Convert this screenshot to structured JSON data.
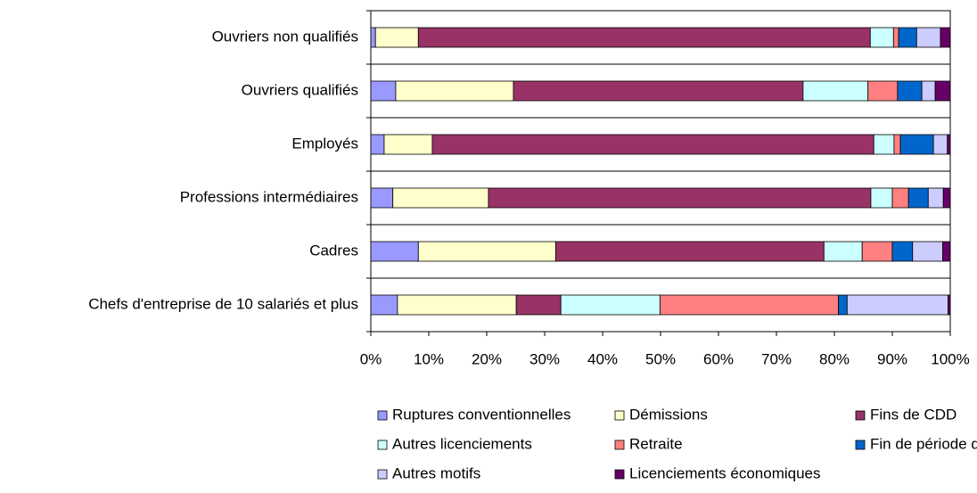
{
  "chart_data": {
    "type": "stacked_barh",
    "categories": [
      "Ouvriers non qualifiés",
      "Ouvriers qualifiés",
      "Employés",
      "Professions intermédiaires",
      "Cadres",
      "Chefs d'entreprise de 10 salariés et plus"
    ],
    "series": [
      {
        "name": "Ruptures conventionnelles",
        "color": "#9999ff",
        "values": [
          0.8,
          4.3,
          2.3,
          3.8,
          8.2,
          4.6
        ]
      },
      {
        "name": "Démissions",
        "color": "#ffffcc",
        "values": [
          7.4,
          20.3,
          8.3,
          16.5,
          23.7,
          20.5
        ]
      },
      {
        "name": "Fins de CDD",
        "color": "#993366",
        "values": [
          78,
          50,
          76.2,
          66,
          46.3,
          7.7
        ]
      },
      {
        "name": "Autres licenciements",
        "color": "#ccffff",
        "values": [
          4,
          11.2,
          3.5,
          3.7,
          6.6,
          17.1
        ]
      },
      {
        "name": "Retraite",
        "color": "#ff8080",
        "values": [
          0.9,
          5.1,
          1.1,
          2.8,
          5.2,
          30.8
        ]
      },
      {
        "name": "Fin de période d'essai",
        "color": "#0066cc",
        "values": [
          3.1,
          4.2,
          5.7,
          3.4,
          3.5,
          1.5
        ]
      },
      {
        "name": "Autres motifs",
        "color": "#ccccff",
        "values": [
          4.1,
          2.3,
          2.4,
          2.6,
          5.2,
          17.4
        ]
      },
      {
        "name": "Licenciements économiques",
        "color": "#660066",
        "values": [
          1.7,
          2.6,
          0.5,
          1.2,
          1.3,
          0.4
        ]
      }
    ],
    "xlim": [
      0,
      100
    ],
    "xticks": [
      {
        "value": 0,
        "label": "0%"
      },
      {
        "value": 10,
        "label": "10%"
      },
      {
        "value": 20,
        "label": "20%"
      },
      {
        "value": 30,
        "label": "30%"
      },
      {
        "value": 40,
        "label": "40%"
      },
      {
        "value": 50,
        "label": "50%"
      },
      {
        "value": 60,
        "label": "60%"
      },
      {
        "value": 70,
        "label": "70%"
      },
      {
        "value": 80,
        "label": "80%"
      },
      {
        "value": 90,
        "label": "90%"
      },
      {
        "value": 100,
        "label": "100%"
      }
    ],
    "grid": false,
    "legend": "bottom"
  }
}
